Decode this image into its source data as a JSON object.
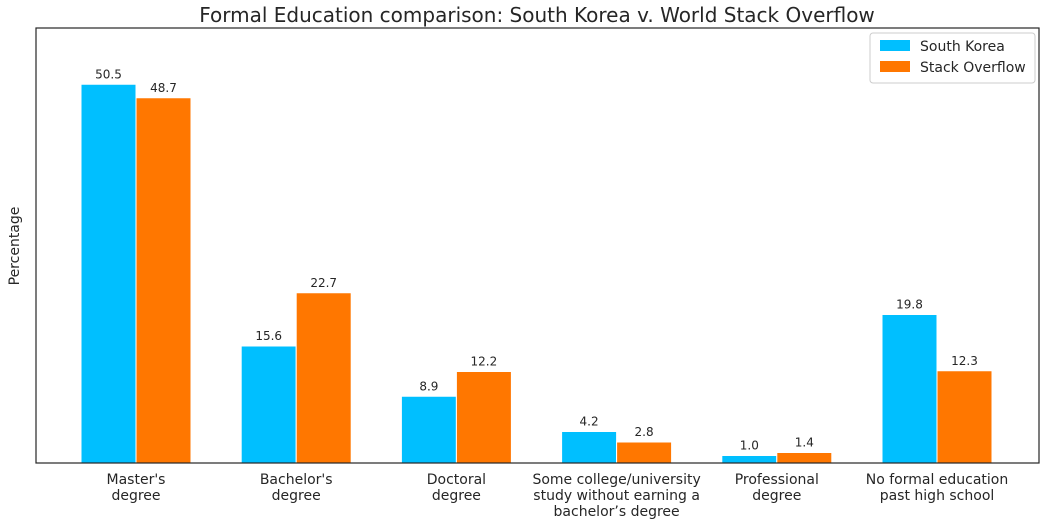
{
  "chart_data": {
    "type": "bar",
    "title": "Formal Education comparison: South Korea v. World Stack Overflow",
    "xlabel": "",
    "ylabel": "Percentage",
    "ylim": [
      0,
      58
    ],
    "grid": false,
    "legend_position": "top-right",
    "categories": [
      [
        "Master's",
        "degree"
      ],
      [
        "Bachelor's",
        "degree"
      ],
      [
        "Doctoral",
        "degree"
      ],
      [
        "Some college/university",
        "study without earning a",
        "bachelor’s degree"
      ],
      [
        "Professional",
        "degree"
      ],
      [
        "No formal education",
        "past high school"
      ]
    ],
    "series": [
      {
        "name": "South Korea",
        "color": "#00bfff",
        "values": [
          50.5,
          15.6,
          8.9,
          4.2,
          1.0,
          19.8
        ]
      },
      {
        "name": "Stack Overflow",
        "color": "#ff7700",
        "values": [
          48.7,
          22.7,
          12.2,
          2.8,
          1.4,
          12.3
        ]
      }
    ],
    "value_labels": [
      [
        "50.5",
        "15.6",
        "8.9",
        "4.2",
        "1.0",
        "19.8"
      ],
      [
        "48.7",
        "22.7",
        "12.2",
        "2.8",
        "1.4",
        "12.3"
      ]
    ]
  }
}
